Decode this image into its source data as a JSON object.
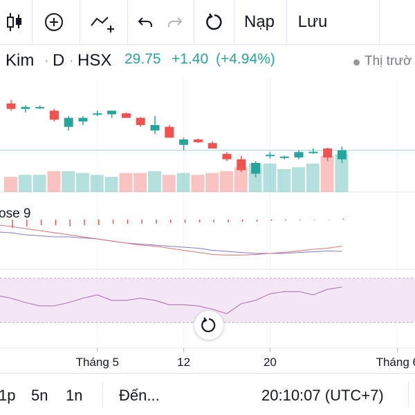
{
  "toolbar": {
    "buttons": [
      {
        "name": "candles-icon"
      },
      {
        "name": "add-icon"
      },
      {
        "name": "compare-icon"
      },
      {
        "name": "undo-icon"
      },
      {
        "name": "redo-icon"
      },
      {
        "name": "reload-icon"
      }
    ],
    "load_label": "Nạp",
    "save_label": "Lưu"
  },
  "symbol": {
    "name": "Kim",
    "interval": "D",
    "exchange": "HSX",
    "last_price": "29.75",
    "change": "+1.40",
    "change_pct": "(+4.94%)",
    "market_status": "Thị trườ",
    "positive_color": "#26a69a",
    "negative_color": "#ef5350"
  },
  "indicator": {
    "label": "ose 9"
  },
  "chart_data": {
    "type": "candlestick",
    "candles": [
      {
        "o": 27.3,
        "h": 27.5,
        "l": 26.9,
        "c": 27.0,
        "vol": 0.4,
        "up": false
      },
      {
        "o": 27.0,
        "h": 27.2,
        "l": 26.8,
        "c": 27.1,
        "vol": 0.45,
        "up": true
      },
      {
        "o": 27.1,
        "h": 27.2,
        "l": 27.0,
        "c": 27.05,
        "vol": 0.45,
        "up": true
      },
      {
        "o": 26.9,
        "h": 27.0,
        "l": 26.3,
        "c": 26.4,
        "vol": 0.55,
        "up": false
      },
      {
        "o": 26.0,
        "h": 26.6,
        "l": 25.8,
        "c": 26.5,
        "vol": 0.55,
        "up": true
      },
      {
        "o": 26.3,
        "h": 26.6,
        "l": 26.1,
        "c": 26.5,
        "vol": 0.5,
        "up": true
      },
      {
        "o": 26.7,
        "h": 26.9,
        "l": 26.6,
        "c": 26.75,
        "vol": 0.45,
        "up": true
      },
      {
        "o": 26.7,
        "h": 26.9,
        "l": 26.5,
        "c": 26.9,
        "vol": 0.4,
        "up": true
      },
      {
        "o": 26.75,
        "h": 26.8,
        "l": 26.5,
        "c": 26.5,
        "vol": 0.5,
        "up": false
      },
      {
        "o": 26.5,
        "h": 26.55,
        "l": 26.0,
        "c": 26.1,
        "vol": 0.5,
        "up": false
      },
      {
        "o": 25.8,
        "h": 26.6,
        "l": 25.6,
        "c": 26.1,
        "vol": 0.55,
        "up": true
      },
      {
        "o": 26.0,
        "h": 26.1,
        "l": 25.4,
        "c": 25.4,
        "vol": 0.45,
        "up": false
      },
      {
        "o": 25.0,
        "h": 25.4,
        "l": 24.7,
        "c": 25.3,
        "vol": 0.5,
        "up": true
      },
      {
        "o": 25.3,
        "h": 25.35,
        "l": 25.1,
        "c": 25.15,
        "vol": 0.45,
        "up": false
      },
      {
        "o": 25.1,
        "h": 25.2,
        "l": 24.8,
        "c": 24.8,
        "vol": 0.5,
        "up": false
      },
      {
        "o": 24.5,
        "h": 24.6,
        "l": 24.1,
        "c": 24.2,
        "vol": 0.55,
        "up": false
      },
      {
        "o": 24.2,
        "h": 24.4,
        "l": 23.5,
        "c": 23.6,
        "vol": 0.65,
        "up": false
      },
      {
        "o": 23.4,
        "h": 24.1,
        "l": 23.2,
        "c": 24.0,
        "vol": 0.75,
        "up": true
      },
      {
        "o": 24.4,
        "h": 24.6,
        "l": 24.25,
        "c": 24.45,
        "vol": 0.75,
        "up": true
      },
      {
        "o": 24.3,
        "h": 24.4,
        "l": 24.2,
        "c": 24.35,
        "vol": 0.6,
        "up": true
      },
      {
        "o": 24.3,
        "h": 24.7,
        "l": 24.2,
        "c": 24.6,
        "vol": 0.65,
        "up": true
      },
      {
        "o": 24.6,
        "h": 24.8,
        "l": 24.5,
        "c": 24.62,
        "vol": 0.75,
        "up": true
      },
      {
        "o": 24.8,
        "h": 24.85,
        "l": 24.1,
        "c": 24.3,
        "vol": 0.95,
        "up": false
      },
      {
        "o": 24.2,
        "h": 24.9,
        "l": 24.0,
        "c": 24.7,
        "vol": 1.0,
        "up": true
      }
    ],
    "osc_bars": [
      -0.3,
      -0.25,
      -0.2,
      -0.2,
      -0.25,
      -0.2,
      -0.2,
      -0.15,
      -0.15,
      -0.15,
      -0.15,
      -0.12,
      -0.12,
      -0.1,
      -0.1,
      -0.1,
      -0.08,
      -0.08,
      -0.05,
      -0.04,
      -0.03,
      -0.02,
      -0.02,
      0.04
    ],
    "osc_line1": [
      1.0,
      0.9,
      0.85,
      0.8,
      0.8,
      0.75,
      0.7,
      0.6,
      0.5,
      0.45,
      0.4,
      0.35,
      0.3,
      0.25,
      0.15,
      0.1,
      0.05,
      0.0,
      0.0,
      0.0,
      0.05,
      0.08,
      0.12,
      0.1
    ],
    "osc_line2": [
      1.3,
      1.2,
      1.1,
      1.0,
      0.9,
      0.8,
      0.7,
      0.6,
      0.5,
      0.4,
      0.35,
      0.25,
      0.15,
      0.05,
      -0.05,
      -0.08,
      -0.08,
      -0.05,
      0.0,
      0.05,
      0.12,
      0.2,
      0.25,
      0.35
    ],
    "rsi": [
      52,
      48,
      45,
      45,
      48,
      52,
      55,
      50,
      50,
      52,
      50,
      46,
      46,
      45,
      42,
      38,
      47,
      50,
      56,
      58,
      58,
      55,
      60,
      62
    ],
    "x_ticks": [
      {
        "label": "Tháng 5",
        "index": 6
      },
      {
        "label": "12",
        "index": 12
      },
      {
        "label": "20",
        "index": 18
      },
      {
        "label": "Tháng 6",
        "index": 26
      }
    ]
  },
  "bottom": {
    "intervals": [
      "1p",
      "5n",
      "1n"
    ],
    "goto_label": "Đến...",
    "clock": "20:10:07 (UTC+7)"
  }
}
